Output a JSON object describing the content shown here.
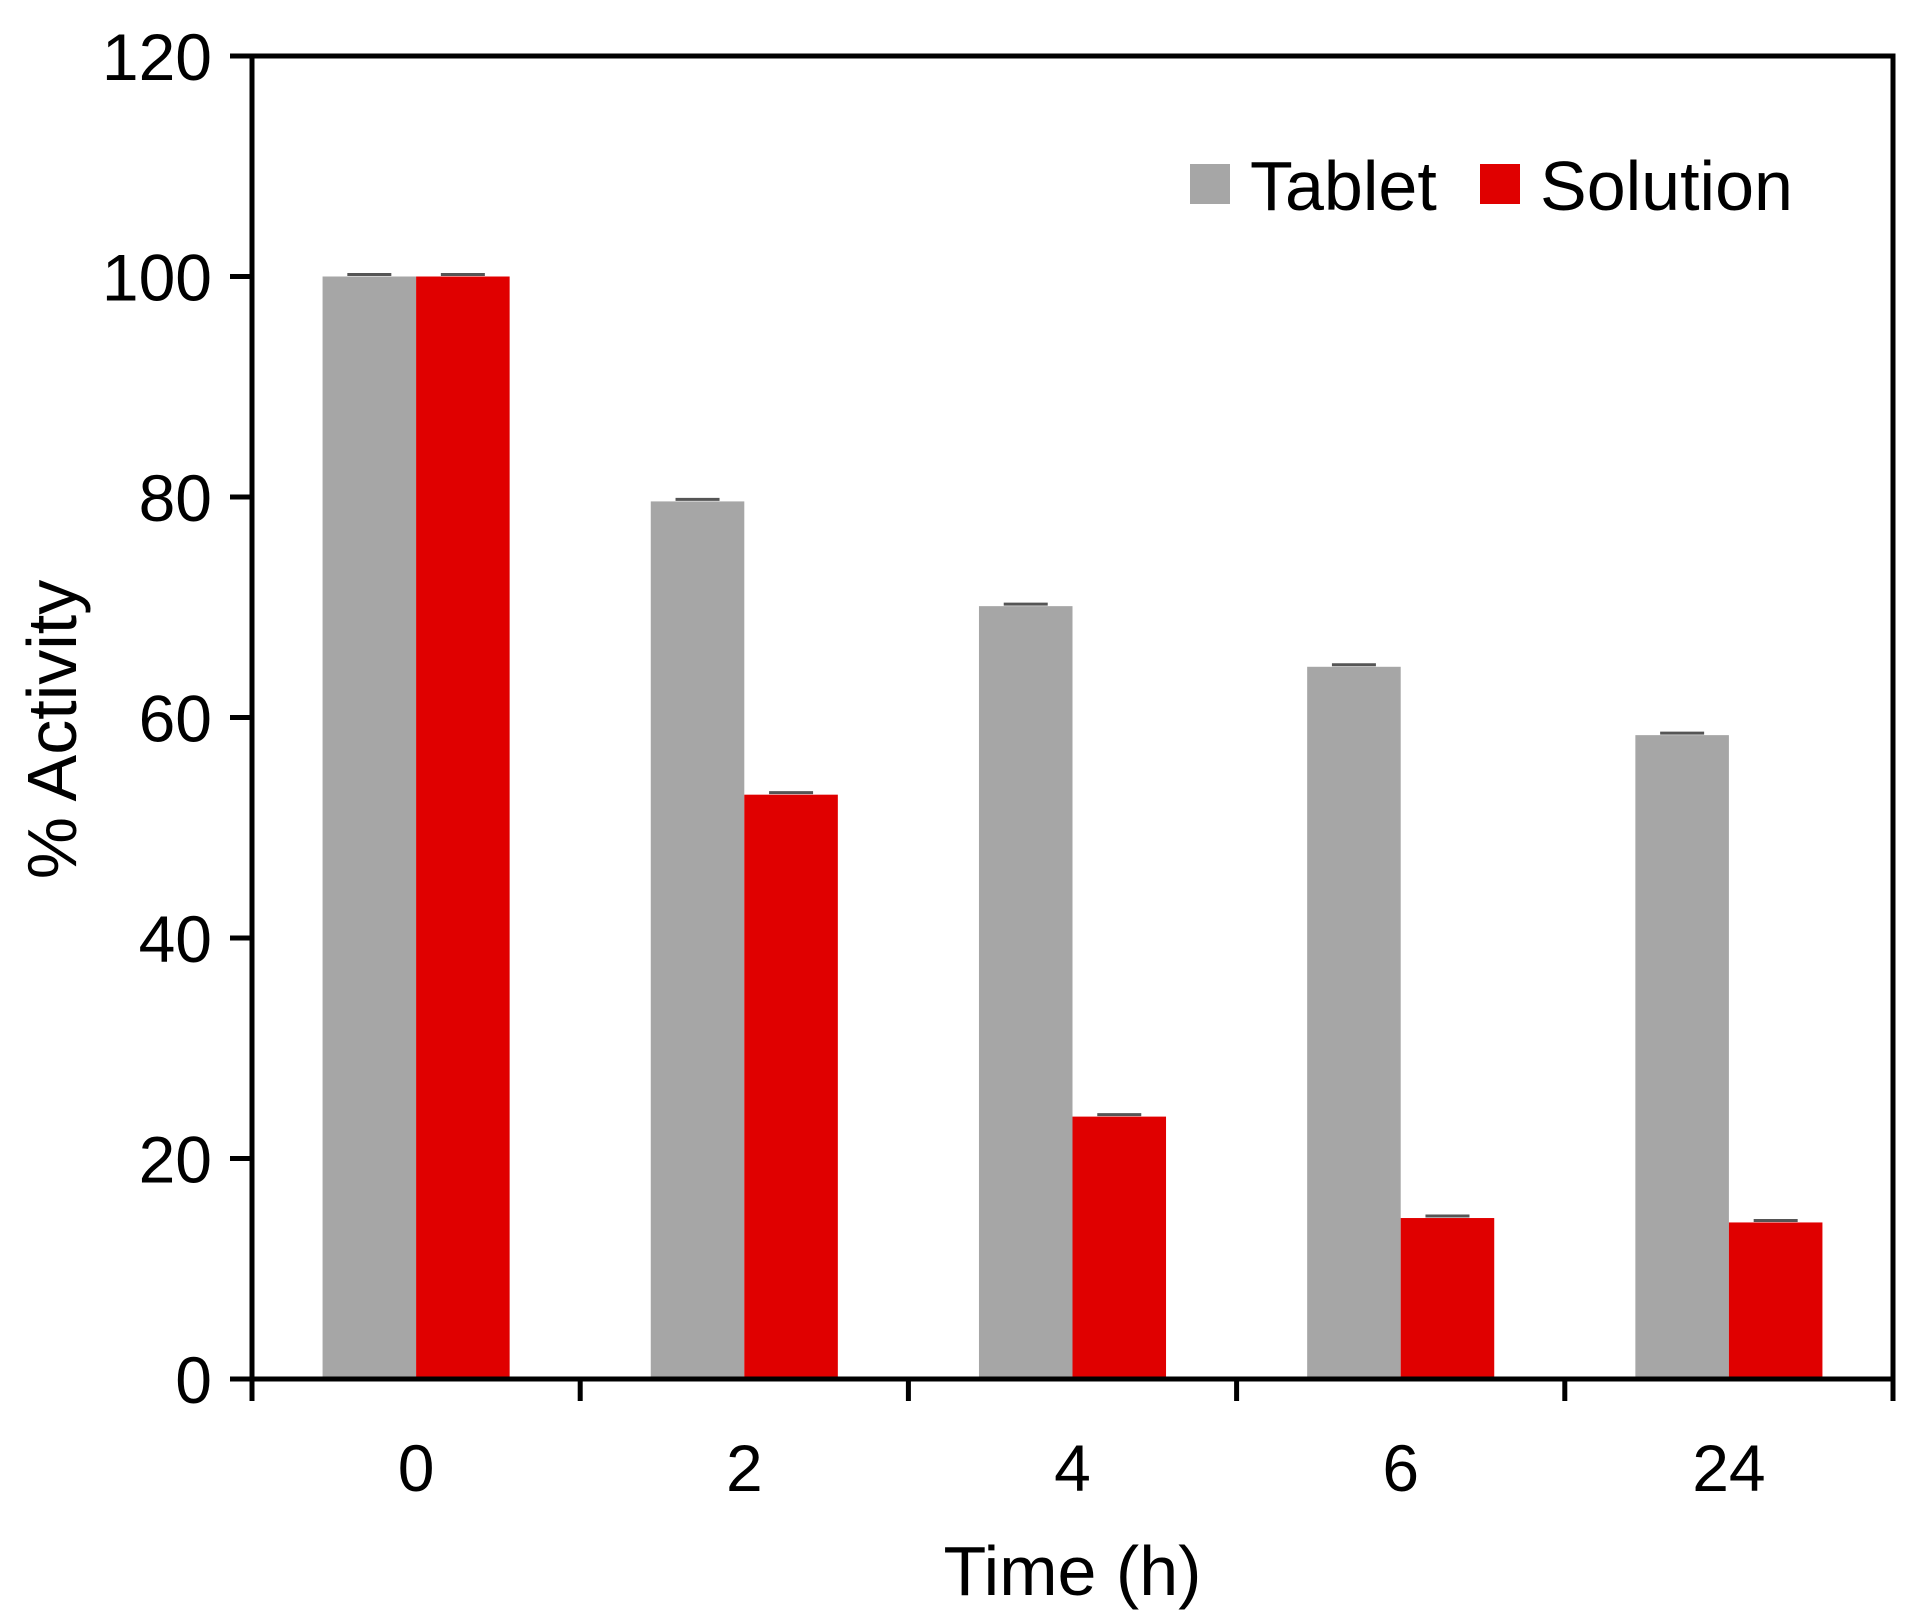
{
  "chart_data": {
    "type": "bar",
    "categories": [
      "0",
      "2",
      "4",
      "6",
      "24"
    ],
    "series": [
      {
        "name": "Tablet",
        "values": [
          100,
          79.6,
          70.1,
          64.6,
          58.4
        ]
      },
      {
        "name": "Solution",
        "values": [
          100,
          53.0,
          23.8,
          14.6,
          14.2
        ]
      }
    ],
    "xlabel": "Time (h)",
    "ylabel": "% Activity",
    "ylim": [
      0,
      120
    ],
    "yticks": [
      "0",
      "20",
      "40",
      "60",
      "80",
      "100",
      "120"
    ],
    "legend_position": "top-right",
    "grid": false,
    "error_bars": true,
    "colors": {
      "Tablet": "#a6a6a6",
      "Solution": "#e00000",
      "axis": "#000000",
      "error_bar": "#555555"
    }
  }
}
